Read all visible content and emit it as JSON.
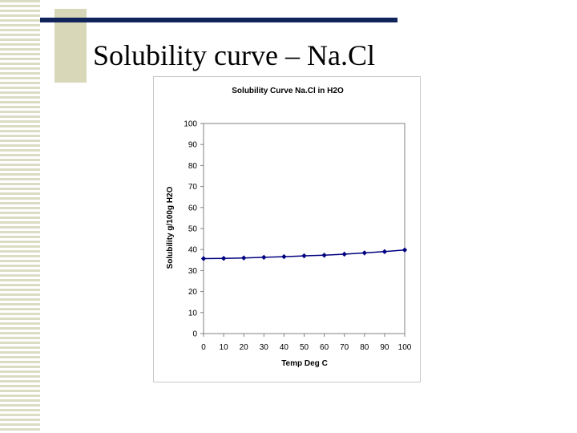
{
  "slide": {
    "title": "Solubility curve – Na.Cl"
  },
  "colors": {
    "title_bar": "#10235a",
    "accent": "#d8d8b8",
    "series": "#000080"
  },
  "chart_data": {
    "type": "line",
    "title": "Solubility Curve Na.Cl in H2O",
    "xlabel": "Temp Deg C",
    "ylabel": "Solubility g/100g H2O",
    "xlim": [
      0,
      100
    ],
    "ylim": [
      0,
      100
    ],
    "xticks": [
      0,
      10,
      20,
      30,
      40,
      50,
      60,
      70,
      80,
      90,
      100
    ],
    "yticks": [
      0,
      10,
      20,
      30,
      40,
      50,
      60,
      70,
      80,
      90,
      100
    ],
    "grid": false,
    "legend": false,
    "series": [
      {
        "x": [
          0,
          10,
          20,
          30,
          40,
          50,
          60,
          70,
          80,
          90,
          100
        ],
        "values": [
          35.7,
          35.8,
          36.0,
          36.3,
          36.6,
          37.0,
          37.3,
          37.8,
          38.4,
          39.0,
          39.8
        ]
      }
    ]
  }
}
